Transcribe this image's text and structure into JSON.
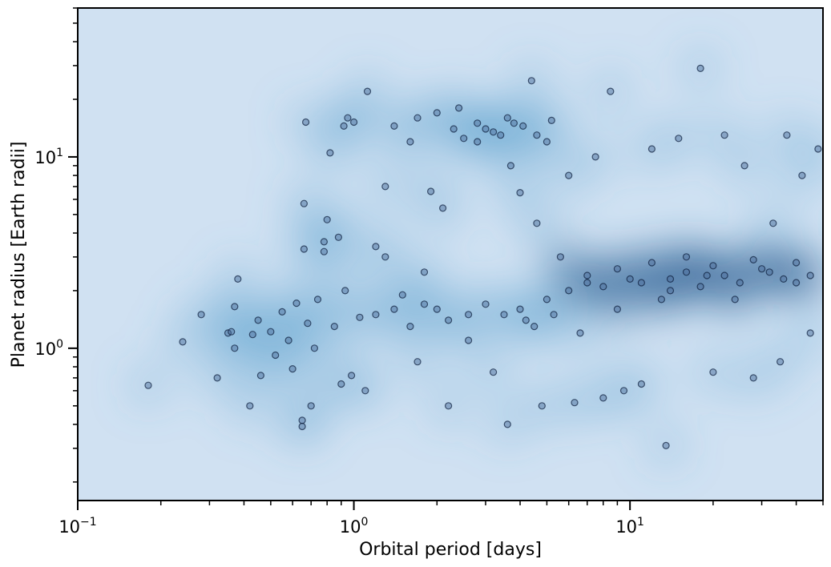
{
  "chart_data": {
    "type": "scatter",
    "title": "",
    "xlabel": "Orbital period [days]",
    "ylabel": "Planet radius [Earth radii]",
    "xscale": "log",
    "yscale": "log",
    "xlim": [
      0.1,
      50
    ],
    "ylim": [
      0.16,
      60
    ],
    "grid": false,
    "legend": "none",
    "background": "kernel density estimate (Blues colormap)",
    "x_ticks": [
      {
        "value": 0.1,
        "base": "10",
        "exp": "−1"
      },
      {
        "value": 1,
        "base": "10",
        "exp": "0"
      },
      {
        "value": 10,
        "base": "10",
        "exp": "1"
      }
    ],
    "y_ticks": [
      {
        "value": 1,
        "base": "10",
        "exp": "0"
      },
      {
        "value": 10,
        "base": "10",
        "exp": "1"
      }
    ],
    "colors": {
      "kde_low": "#d0e1f2",
      "kde_mid": "#4a98c9",
      "kde_high": "#08306b",
      "marker_fill": "#4a6b9a",
      "marker_edge": "#0b1d3a"
    },
    "series": [
      {
        "points": [
          [
            0.18,
            0.64
          ],
          [
            0.24,
            1.08
          ],
          [
            0.28,
            1.5
          ],
          [
            0.32,
            0.7
          ],
          [
            0.35,
            1.2
          ],
          [
            0.36,
            1.22
          ],
          [
            0.37,
            1.0
          ],
          [
            0.37,
            1.65
          ],
          [
            0.38,
            2.3
          ],
          [
            0.42,
            0.5
          ],
          [
            0.43,
            1.18
          ],
          [
            0.45,
            1.4
          ],
          [
            0.46,
            0.72
          ],
          [
            0.5,
            1.22
          ],
          [
            0.52,
            0.92
          ],
          [
            0.55,
            1.55
          ],
          [
            0.58,
            1.1
          ],
          [
            0.6,
            0.78
          ],
          [
            0.62,
            1.72
          ],
          [
            0.65,
            0.42
          ],
          [
            0.65,
            0.39
          ],
          [
            0.66,
            5.7
          ],
          [
            0.66,
            3.3
          ],
          [
            0.67,
            15.2
          ],
          [
            0.68,
            1.35
          ],
          [
            0.7,
            0.5
          ],
          [
            0.72,
            1.0
          ],
          [
            0.74,
            1.8
          ],
          [
            0.78,
            3.6
          ],
          [
            0.78,
            3.2
          ],
          [
            0.8,
            4.7
          ],
          [
            0.82,
            10.5
          ],
          [
            0.85,
            1.3
          ],
          [
            0.88,
            3.8
          ],
          [
            0.9,
            0.65
          ],
          [
            0.92,
            14.5
          ],
          [
            0.93,
            2.0
          ],
          [
            0.95,
            16.0
          ],
          [
            0.98,
            0.72
          ],
          [
            1.0,
            15.2
          ],
          [
            1.05,
            1.45
          ],
          [
            1.1,
            0.6
          ],
          [
            1.12,
            22.0
          ],
          [
            1.2,
            3.4
          ],
          [
            1.3,
            7.0
          ],
          [
            1.3,
            3.0
          ],
          [
            1.4,
            14.5
          ],
          [
            1.5,
            1.9
          ],
          [
            1.6,
            12.0
          ],
          [
            1.7,
            0.85
          ],
          [
            1.8,
            2.5
          ],
          [
            1.9,
            6.6
          ],
          [
            2.0,
            1.6
          ],
          [
            2.1,
            5.4
          ],
          [
            2.2,
            0.5
          ],
          [
            2.4,
            18.0
          ],
          [
            2.5,
            12.5
          ],
          [
            2.6,
            1.1
          ],
          [
            2.8,
            15.0
          ],
          [
            3.0,
            14.0
          ],
          [
            3.2,
            0.75
          ],
          [
            3.4,
            13.0
          ],
          [
            3.6,
            0.4
          ],
          [
            3.7,
            9.0
          ],
          [
            3.8,
            15.0
          ],
          [
            4.0,
            6.5
          ],
          [
            4.2,
            1.4
          ],
          [
            4.4,
            25.0
          ],
          [
            4.6,
            4.5
          ],
          [
            4.8,
            0.5
          ],
          [
            5.0,
            12.0
          ],
          [
            5.3,
            1.5
          ],
          [
            5.6,
            3.0
          ],
          [
            6.0,
            8.0
          ],
          [
            6.3,
            0.52
          ],
          [
            6.6,
            1.2
          ],
          [
            7.0,
            2.2
          ],
          [
            7.5,
            10.0
          ],
          [
            8.0,
            0.55
          ],
          [
            8.5,
            22.0
          ],
          [
            9.0,
            1.6
          ],
          [
            9.5,
            0.6
          ],
          [
            10,
            2.3
          ],
          [
            11,
            0.65
          ],
          [
            12,
            11.0
          ],
          [
            13,
            1.8
          ],
          [
            13.5,
            0.31
          ],
          [
            14,
            2.0
          ],
          [
            15,
            12.5
          ],
          [
            16,
            3.0
          ],
          [
            18,
            29.0
          ],
          [
            19,
            2.4
          ],
          [
            20,
            0.75
          ],
          [
            22,
            13.0
          ],
          [
            24,
            1.8
          ],
          [
            26,
            9.0
          ],
          [
            28,
            0.7
          ],
          [
            30,
            2.6
          ],
          [
            33,
            4.5
          ],
          [
            35,
            0.85
          ],
          [
            37,
            13.0
          ],
          [
            40,
            2.2
          ],
          [
            42,
            8.0
          ],
          [
            45,
            1.2
          ],
          [
            48,
            11.0
          ],
          [
            1.2,
            1.5
          ],
          [
            1.4,
            1.6
          ],
          [
            1.6,
            1.3
          ],
          [
            1.8,
            1.7
          ],
          [
            2.2,
            1.4
          ],
          [
            2.6,
            1.5
          ],
          [
            3.0,
            1.7
          ],
          [
            3.5,
            1.5
          ],
          [
            4.0,
            1.6
          ],
          [
            4.5,
            1.3
          ],
          [
            5.0,
            1.8
          ],
          [
            6.0,
            2.0
          ],
          [
            7.0,
            2.4
          ],
          [
            8.0,
            2.1
          ],
          [
            9.0,
            2.6
          ],
          [
            11,
            2.2
          ],
          [
            12,
            2.8
          ],
          [
            14,
            2.3
          ],
          [
            16,
            2.5
          ],
          [
            18,
            2.1
          ],
          [
            20,
            2.7
          ],
          [
            22,
            2.4
          ],
          [
            25,
            2.2
          ],
          [
            28,
            2.9
          ],
          [
            32,
            2.5
          ],
          [
            36,
            2.3
          ],
          [
            40,
            2.8
          ],
          [
            45,
            2.4
          ],
          [
            2.8,
            12.0
          ],
          [
            3.2,
            13.5
          ],
          [
            3.6,
            16.0
          ],
          [
            4.1,
            14.5
          ],
          [
            4.6,
            13.0
          ],
          [
            5.2,
            15.5
          ],
          [
            2.3,
            14.0
          ],
          [
            2.0,
            17.0
          ],
          [
            1.7,
            16.0
          ]
        ]
      }
    ]
  }
}
